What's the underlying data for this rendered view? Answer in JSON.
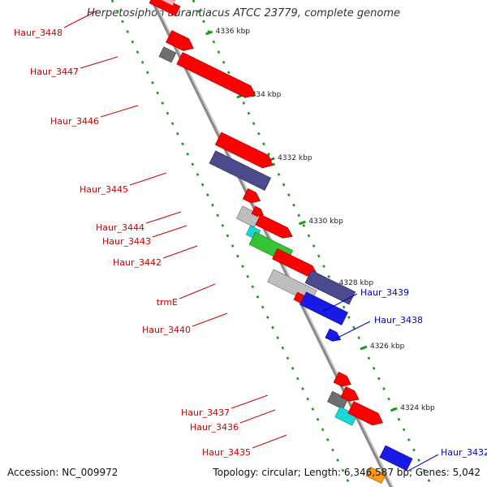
{
  "title": "Herpetosiphon aurantiacus ATCC 23779, complete genome",
  "footer": {
    "accession": "Accession: NC_009972",
    "topology": "Topology: circular; Length: 6,346,587 bp; Genes: 5,042"
  },
  "colors": {
    "plus_strand_label": "#cc0000",
    "minus_strand_label": "#0000cc",
    "backbone": "#8a8a8a",
    "ruler_dots": "#1a9a1a",
    "gene_red": "#ff0000",
    "gene_purple": "#4a4a8c",
    "gene_gray": "#bdbdbd",
    "gene_darkgray": "#6f6f6f",
    "gene_cyan": "#19d8d8",
    "gene_green": "#35c435",
    "gene_blue": "#1a1ae6",
    "gene_orange": "#ff9a1a",
    "gene_pink": "#ffb3b3"
  },
  "ruler": [
    "4336 kbp",
    "4334 kbp",
    "4332 kbp",
    "4330 kbp",
    "4328 kbp",
    "4326 kbp",
    "4324 kbp"
  ],
  "gene_labels": [
    {
      "name": "Haur_3448",
      "strand": "plus"
    },
    {
      "name": "Haur_3447",
      "strand": "plus"
    },
    {
      "name": "Haur_3446",
      "strand": "plus"
    },
    {
      "name": "Haur_3445",
      "strand": "plus"
    },
    {
      "name": "Haur_3444",
      "strand": "plus"
    },
    {
      "name": "Haur_3443",
      "strand": "plus"
    },
    {
      "name": "Haur_3442",
      "strand": "plus"
    },
    {
      "name": "trmE",
      "strand": "plus"
    },
    {
      "name": "Haur_3440",
      "strand": "plus"
    },
    {
      "name": "Haur_3439",
      "strand": "minus"
    },
    {
      "name": "Haur_3438",
      "strand": "minus"
    },
    {
      "name": "Haur_3437",
      "strand": "plus"
    },
    {
      "name": "Haur_3436",
      "strand": "plus"
    },
    {
      "name": "Haur_3435",
      "strand": "plus"
    },
    {
      "name": "Haur_3432",
      "strand": "minus"
    }
  ],
  "features": [
    {
      "name": "feature-red-top",
      "color": "gene_red",
      "arrow": false
    },
    {
      "name": "feature-pink-top",
      "color": "gene_pink",
      "arrow": false
    },
    {
      "name": "feature-haur-3447-darkgray",
      "color": "gene_darkgray",
      "arrow": false
    },
    {
      "name": "feature-haur-3447-red",
      "color": "gene_red",
      "arrow": true
    },
    {
      "name": "feature-haur-3446-red",
      "color": "gene_red",
      "arrow": true
    },
    {
      "name": "feature-haur-3445-purple",
      "color": "gene_purple",
      "arrow": false
    },
    {
      "name": "feature-haur-3445-red",
      "color": "gene_red",
      "arrow": true
    },
    {
      "name": "feature-haur-3444-gray",
      "color": "gene_gray",
      "arrow": false
    },
    {
      "name": "feature-haur-3444-red",
      "color": "gene_red",
      "arrow": true
    },
    {
      "name": "feature-haur-3443-cyan",
      "color": "gene_cyan",
      "arrow": false
    },
    {
      "name": "feature-haur-3443-red",
      "color": "gene_red",
      "arrow": true
    },
    {
      "name": "feature-haur-3442-green",
      "color": "gene_green",
      "arrow": false
    },
    {
      "name": "feature-haur-3442-red",
      "color": "gene_red",
      "arrow": true
    },
    {
      "name": "feature-trme-gray",
      "color": "gene_gray",
      "arrow": false
    },
    {
      "name": "feature-trme-red",
      "color": "gene_red",
      "arrow": true
    },
    {
      "name": "feature-haur-3440-red",
      "color": "gene_red",
      "arrow": true
    },
    {
      "name": "feature-haur-3439-blue",
      "color": "gene_blue",
      "arrow": false
    },
    {
      "name": "feature-haur-3438-purple",
      "color": "gene_purple",
      "arrow": false
    },
    {
      "name": "feature-haur-3438-blue-arrow",
      "color": "gene_blue",
      "arrow": true
    },
    {
      "name": "feature-haur-3437-darkgray",
      "color": "gene_darkgray",
      "arrow": false
    },
    {
      "name": "feature-haur-3437-red",
      "color": "gene_red",
      "arrow": true
    },
    {
      "name": "feature-haur-3436-cyan",
      "color": "gene_cyan",
      "arrow": false
    },
    {
      "name": "feature-haur-3436-red",
      "color": "gene_red",
      "arrow": true
    },
    {
      "name": "feature-haur-3435-red",
      "color": "gene_red",
      "arrow": true
    },
    {
      "name": "feature-orange",
      "color": "gene_orange",
      "arrow": false
    },
    {
      "name": "feature-haur-3432-blue",
      "color": "gene_blue",
      "arrow": false
    }
  ]
}
